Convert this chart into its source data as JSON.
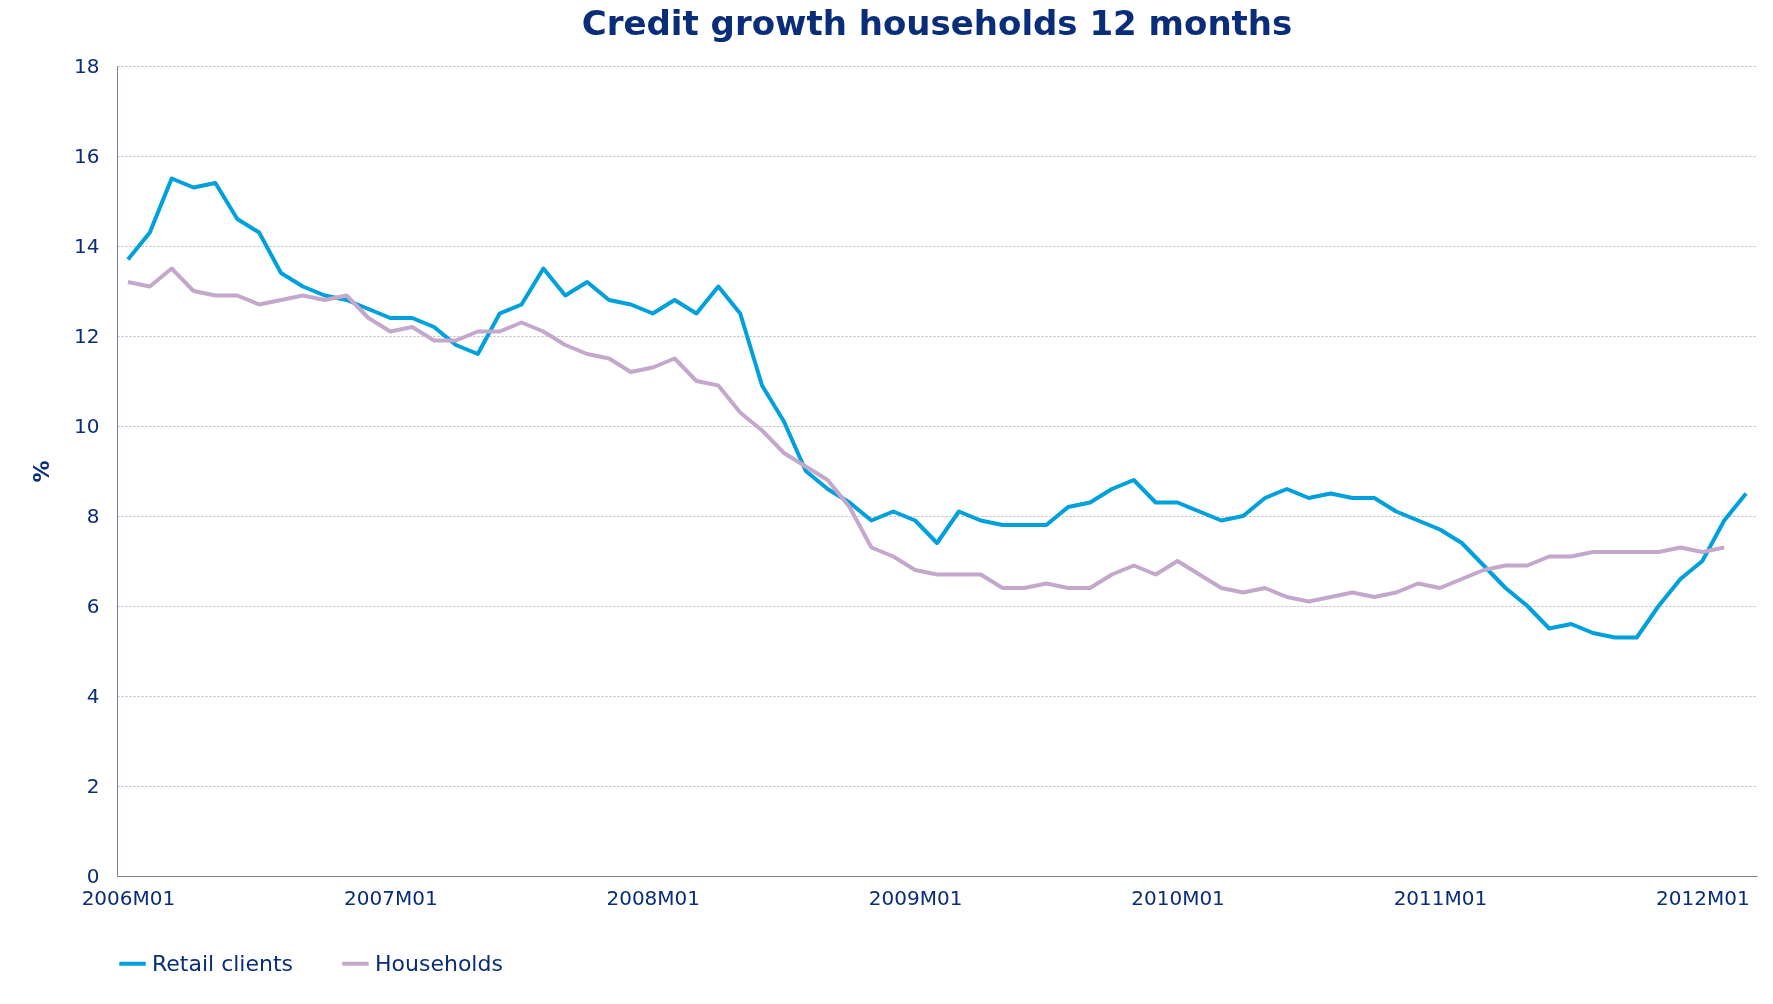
{
  "chart_data": {
    "type": "line",
    "title": "Credit growth households 12 months",
    "ylabel": "%",
    "categories": [
      "2006M01",
      null,
      null,
      null,
      null,
      null,
      null,
      null,
      null,
      null,
      null,
      null,
      "2007M01",
      null,
      null,
      null,
      null,
      null,
      null,
      null,
      null,
      null,
      null,
      null,
      "2008M01",
      null,
      null,
      null,
      null,
      null,
      null,
      null,
      null,
      null,
      null,
      null,
      "2009M01",
      null,
      null,
      null,
      null,
      null,
      null,
      null,
      null,
      null,
      null,
      null,
      "2010M01",
      null,
      null,
      null,
      null,
      null,
      null,
      null,
      null,
      null,
      null,
      null,
      "2011M01",
      null,
      null,
      null,
      null,
      null,
      null,
      null,
      null,
      null,
      null,
      null,
      "2012M01",
      null,
      null
    ],
    "series": [
      {
        "name": "Retail clients",
        "color": "#00a0dc",
        "values": [
          13.7,
          14.3,
          15.5,
          15.3,
          15.4,
          14.6,
          14.3,
          13.4,
          13.1,
          12.9,
          12.8,
          12.6,
          12.4,
          12.4,
          12.2,
          11.8,
          11.6,
          12.5,
          12.7,
          13.5,
          12.9,
          13.2,
          12.8,
          12.7,
          12.5,
          12.8,
          12.5,
          13.1,
          12.5,
          10.9,
          10.1,
          9.0,
          8.6,
          8.3,
          7.9,
          8.1,
          7.9,
          7.4,
          8.1,
          7.9,
          7.8,
          7.8,
          7.8,
          8.2,
          8.3,
          8.6,
          8.8,
          8.3,
          8.3,
          8.1,
          7.9,
          8.0,
          8.4,
          8.6,
          8.4,
          8.5,
          8.4,
          8.4,
          8.1,
          7.9,
          7.7,
          7.4,
          6.9,
          6.4,
          6.0,
          5.5,
          5.6,
          5.4,
          5.3,
          5.3,
          6.0,
          6.6,
          7.0,
          7.9,
          8.5
        ]
      },
      {
        "name": "Households",
        "color": "#c4a8cc",
        "values": [
          13.2,
          13.1,
          13.5,
          13.0,
          12.9,
          12.9,
          12.7,
          12.8,
          12.9,
          12.8,
          12.9,
          12.4,
          12.1,
          12.2,
          11.9,
          11.9,
          12.1,
          12.1,
          12.3,
          12.1,
          11.8,
          11.6,
          11.5,
          11.2,
          11.3,
          11.5,
          11.0,
          10.9,
          10.3,
          9.9,
          9.4,
          9.1,
          8.8,
          8.2,
          7.3,
          7.1,
          6.8,
          6.7,
          6.7,
          6.7,
          6.4,
          6.4,
          6.5,
          6.4,
          6.4,
          6.7,
          6.9,
          6.7,
          7.0,
          6.7,
          6.4,
          6.3,
          6.4,
          6.2,
          6.1,
          6.2,
          6.3,
          6.2,
          6.3,
          6.5,
          6.4,
          6.6,
          6.8,
          6.9,
          6.9,
          7.1,
          7.1,
          7.2,
          7.2,
          7.2,
          7.2,
          7.3,
          7.2,
          7.3,
          null
        ]
      }
    ],
    "ylim": [
      0,
      18
    ],
    "yticks": [
      0,
      2,
      4,
      6,
      8,
      10,
      12,
      14,
      16,
      18
    ],
    "grid": "y",
    "legend": "bottom",
    "line_style": "solid",
    "marker": "none"
  }
}
